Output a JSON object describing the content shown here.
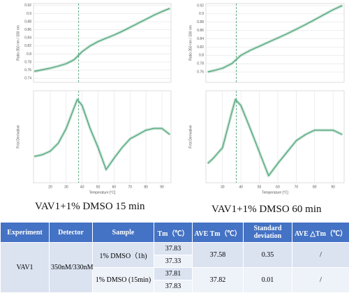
{
  "chart_data": [
    {
      "type": "line",
      "y_label": "Ratio 350 nm / 330 nm",
      "color": "#3a9a6a",
      "x": [
        10,
        15,
        20,
        25,
        30,
        35,
        40,
        45,
        50,
        55,
        60,
        65,
        70,
        75,
        80,
        85,
        90,
        95
      ],
      "values": [
        0.757,
        0.761,
        0.765,
        0.77,
        0.776,
        0.786,
        0.806,
        0.82,
        0.831,
        0.839,
        0.847,
        0.856,
        0.866,
        0.876,
        0.886,
        0.896,
        0.905,
        0.913
      ],
      "xlim": [
        9.5,
        95.7
      ],
      "ylim": [
        0.73,
        0.925
      ],
      "yticks": [
        0.74,
        0.76,
        0.78,
        0.8,
        0.82,
        0.84,
        0.86,
        0.88,
        0.9,
        0.92
      ],
      "grid": true,
      "vline": 37.8
    },
    {
      "type": "line",
      "y_label": "First Derivative",
      "x_label": "Temperature [°C]",
      "color": "#3a9a6a",
      "x": [
        10,
        15,
        20,
        25,
        30,
        35,
        37,
        40,
        45,
        50,
        55,
        60,
        65,
        70,
        75,
        80,
        85,
        90,
        95
      ],
      "values": [
        0.3,
        0.32,
        0.36,
        0.45,
        0.62,
        0.86,
        0.95,
        0.88,
        0.62,
        0.4,
        0.15,
        0.28,
        0.4,
        0.5,
        0.55,
        0.6,
        0.62,
        0.62,
        0.55
      ],
      "xlim": [
        9.5,
        95.7
      ],
      "ylim": [
        0,
        1.05
      ],
      "xticks": [
        20,
        30,
        40,
        50,
        60,
        70,
        80,
        90
      ],
      "grid": true,
      "vline": 37.8
    },
    {
      "type": "line",
      "y_label": "Ratio 350 nm / 330 nm",
      "color": "#3a9a6a",
      "x": [
        22,
        25,
        30,
        35,
        37,
        40,
        45,
        50,
        55,
        60,
        65,
        70,
        75,
        80,
        85,
        90,
        95
      ],
      "values": [
        0.76,
        0.763,
        0.769,
        0.78,
        0.788,
        0.8,
        0.812,
        0.822,
        0.832,
        0.842,
        0.852,
        0.863,
        0.874,
        0.886,
        0.898,
        0.91,
        0.92
      ],
      "xlim": [
        21,
        96
      ],
      "ylim": [
        0.735,
        0.925
      ],
      "yticks": [
        0.76,
        0.78,
        0.8,
        0.82,
        0.84,
        0.86,
        0.88,
        0.9,
        0.92
      ],
      "grid": true,
      "vline": 37.5
    },
    {
      "type": "line",
      "y_label": "First Derivative",
      "x_label": "Temperature [°C]",
      "color": "#3a9a6a",
      "x": [
        22,
        25,
        30,
        35,
        37,
        40,
        45,
        50,
        55,
        60,
        65,
        70,
        75,
        80,
        85,
        90,
        95
      ],
      "values": [
        0.22,
        0.28,
        0.4,
        0.8,
        0.95,
        0.88,
        0.62,
        0.35,
        0.08,
        0.22,
        0.35,
        0.48,
        0.55,
        0.6,
        0.6,
        0.6,
        0.55
      ],
      "xlim": [
        21,
        96
      ],
      "ylim": [
        0,
        1.05
      ],
      "xticks": [
        30,
        40,
        50,
        60,
        70,
        80,
        90
      ],
      "grid": true,
      "vline": 37.5
    }
  ],
  "captions": [
    "VAV1+1% DMSO 15 min",
    "VAV1+1% DMSO 60 min"
  ],
  "table": {
    "header": [
      "Experiment",
      "Detector",
      "Sample",
      "Tm（℃）",
      "AVE Tm（℃）",
      "Standard deviation",
      "AVE △Tm（℃）"
    ],
    "experiment": "VAV1",
    "detector": "350nM/330nM",
    "groups": [
      {
        "sample": "1% DMSO（1h)",
        "tm": [
          "37.83",
          "37.33"
        ],
        "ave": "37.58",
        "sd": "0.35",
        "delta": "/"
      },
      {
        "sample": "1% DMSO (15min)",
        "tm": [
          "37.81",
          "37.83"
        ],
        "ave": "37.82",
        "sd": "0.01",
        "delta": "/"
      }
    ]
  }
}
